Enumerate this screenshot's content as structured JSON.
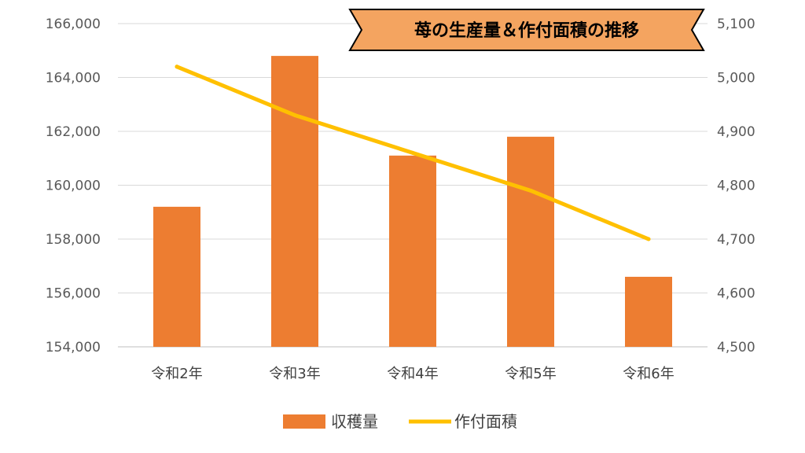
{
  "chart_data": {
    "type": "bar",
    "title": "苺の生産量＆作付面積の推移",
    "categories": [
      "令和2年",
      "令和3年",
      "令和4年",
      "令和5年",
      "令和6年"
    ],
    "series": [
      {
        "name": "収穫量",
        "type": "bar",
        "axis": "left",
        "color": "#ED7D31",
        "values": [
          159200,
          164800,
          161100,
          161800,
          156600
        ]
      },
      {
        "name": "作付面積",
        "type": "line",
        "axis": "right",
        "color": "#FFC000",
        "values": [
          5020,
          4930,
          4860,
          4790,
          4700
        ]
      }
    ],
    "y_left": {
      "ylim": [
        154000,
        166000
      ],
      "ticks": [
        154000,
        156000,
        158000,
        160000,
        162000,
        164000,
        166000
      ],
      "tick_labels": [
        "154,000",
        "156,000",
        "158,000",
        "160,000",
        "162,000",
        "164,000",
        "166,000"
      ]
    },
    "y_right": {
      "ylim": [
        4500,
        5100
      ],
      "ticks": [
        4500,
        4600,
        4700,
        4800,
        4900,
        5000,
        5100
      ],
      "tick_labels": [
        "4,500",
        "4,600",
        "4,700",
        "4,800",
        "4,900",
        "5,000",
        "5,100"
      ]
    },
    "grid": true,
    "legend_position": "bottom",
    "title_box_color": "#F4A460"
  }
}
